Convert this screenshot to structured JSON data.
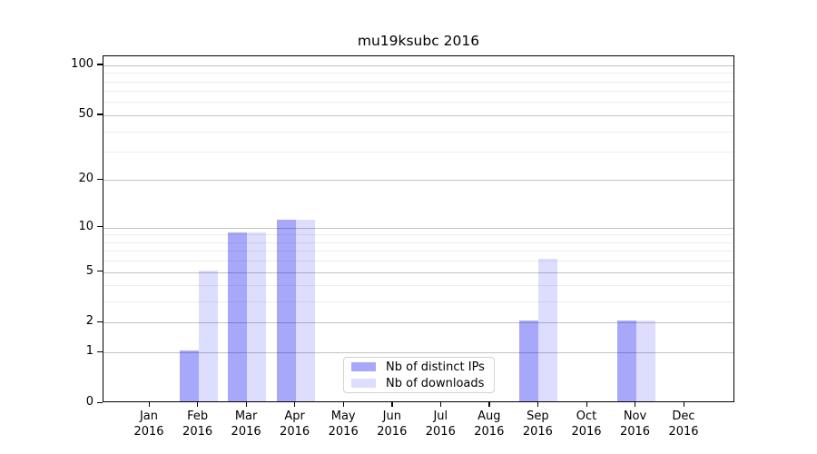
{
  "title": "mu19ksubc 2016",
  "chart_data": {
    "type": "bar",
    "title": "mu19ksubc 2016",
    "categories": [
      "Jan 2016",
      "Feb 2016",
      "Mar 2016",
      "Apr 2016",
      "May 2016",
      "Jun 2016",
      "Jul 2016",
      "Aug 2016",
      "Sep 2016",
      "Oct 2016",
      "Nov 2016",
      "Dec 2016"
    ],
    "series": [
      {
        "name": "Nb of distinct IPs",
        "color": "rgba(0,0,240,0.34)",
        "values": [
          0,
          1,
          9,
          11,
          0,
          0,
          0,
          0,
          2,
          0,
          2,
          0
        ]
      },
      {
        "name": "Nb of downloads",
        "color": "rgba(0,0,240,0.135)",
        "values": [
          0,
          5,
          9,
          11,
          0,
          0,
          0,
          0,
          6,
          0,
          2,
          0
        ]
      }
    ],
    "xlabel": "",
    "ylabel": "",
    "yscale": "log1p",
    "ylim": [
      0,
      113
    ],
    "yticks": [
      0,
      1,
      2,
      5,
      10,
      20,
      50,
      100
    ],
    "ytick_labels": [
      "0",
      "1",
      "2",
      "5",
      "10",
      "20",
      "50",
      "100"
    ],
    "yticks_minor": [
      3,
      4,
      6,
      7,
      8,
      9,
      30,
      40,
      60,
      70,
      80,
      90
    ],
    "grid": true,
    "legend_position": "lower center",
    "style": {
      "major_grid_color": "#c3c3c3",
      "minor_grid_color": "#ececec",
      "axis_color": "#000000",
      "background_color": "#ffffff"
    }
  }
}
